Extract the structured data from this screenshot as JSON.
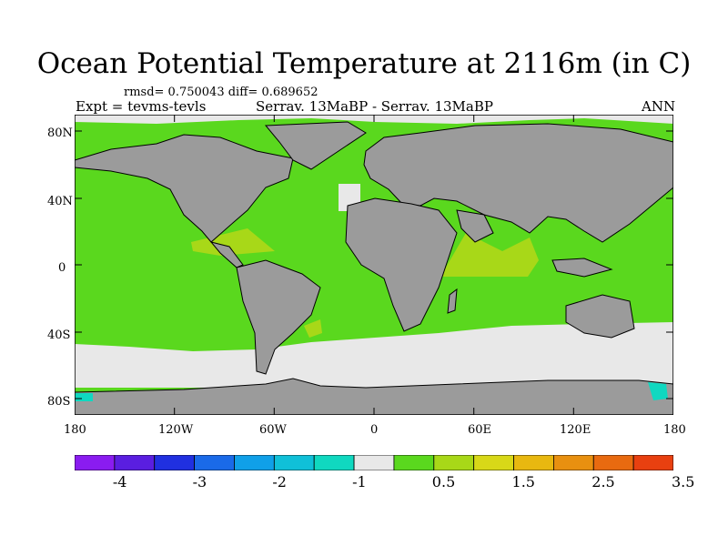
{
  "title": "Ocean Potential Temperature at 2116m (in C)",
  "stats": "rmsd= 0.750043 diff= 0.689652",
  "expt": "Expt = tevms-tevls",
  "case": "Serrav.  13MaBP - Serrav.  13MaBP",
  "season": "ANN",
  "lat_labels": [
    "80N",
    "40N",
    "0",
    "40S",
    "80S"
  ],
  "lon_labels": [
    "180",
    "120W",
    "60W",
    "0",
    "60E",
    "120E",
    "180"
  ],
  "colorbar": {
    "colors": [
      "#8a1cf0",
      "#5a1ee0",
      "#2030e0",
      "#1a6ae8",
      "#10a0e8",
      "#10c0d8",
      "#10d8c0",
      "#e8e8e8",
      "#5ad81e",
      "#a8d818",
      "#d8d818",
      "#e8b810",
      "#e89010",
      "#e86a10",
      "#e84010"
    ],
    "labels": [
      "-4",
      "-3",
      "-2",
      "-1",
      "0.5",
      "1.5",
      "2.5",
      "3.5"
    ]
  },
  "colors": {
    "land": "#9b9b9b",
    "ocean_warm": "#5ad81e",
    "ocean_zero": "#e8e8e8",
    "ocean_hot": "#a8d818",
    "ocean_cold": "#10d8c0"
  }
}
